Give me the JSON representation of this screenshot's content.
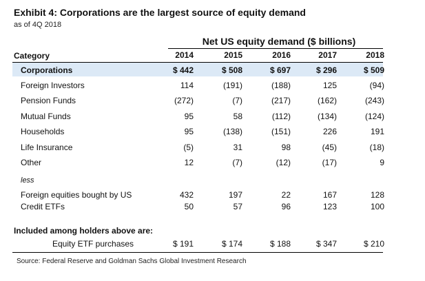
{
  "exhibit": {
    "title": "Exhibit 4: Corporations are the largest source of equity demand",
    "subtitle": "as of 4Q 2018"
  },
  "table": {
    "group_header": "Net US equity demand ($ billions)",
    "category_header": "Category",
    "years": [
      "2014",
      "2015",
      "2016",
      "2017",
      "2018"
    ],
    "rows": [
      {
        "label": "Corporations",
        "values": [
          "$ 442",
          "$ 508",
          "$ 697",
          "$ 296",
          "$ 509"
        ],
        "highlight": true
      },
      {
        "label": "Foreign Investors",
        "values": [
          "114",
          "(191)",
          "(188)",
          "125",
          "(94)"
        ]
      },
      {
        "label": "Pension Funds",
        "values": [
          "(272)",
          "(7)",
          "(217)",
          "(162)",
          "(243)"
        ]
      },
      {
        "label": "Mutual Funds",
        "values": [
          "95",
          "58",
          "(112)",
          "(134)",
          "(124)"
        ]
      },
      {
        "label": "Households",
        "values": [
          "95",
          "(138)",
          "(151)",
          "226",
          "191"
        ]
      },
      {
        "label": "Life Insurance",
        "values": [
          "(5)",
          "31",
          "98",
          "(45)",
          "(18)"
        ]
      },
      {
        "label": "Other",
        "values": [
          "12",
          "(7)",
          "(12)",
          "(17)",
          "9"
        ]
      }
    ],
    "less_label": "less",
    "less_rows": [
      {
        "label": "Foreign equities bought by US",
        "values": [
          "432",
          "197",
          "22",
          "167",
          "128"
        ]
      },
      {
        "label": "Credit ETFs",
        "values": [
          "50",
          "57",
          "96",
          "123",
          "100"
        ]
      }
    ],
    "included_header": "Included among holders above are:",
    "etf_row": {
      "label": "Equity ETF purchases",
      "values": [
        "$ 191",
        "$ 174",
        "$ 188",
        "$ 347",
        "$ 210"
      ]
    }
  },
  "source": "Source: Federal Reserve and Goldman Sachs Global Investment Research",
  "colors": {
    "highlight": "#dce9f6"
  }
}
